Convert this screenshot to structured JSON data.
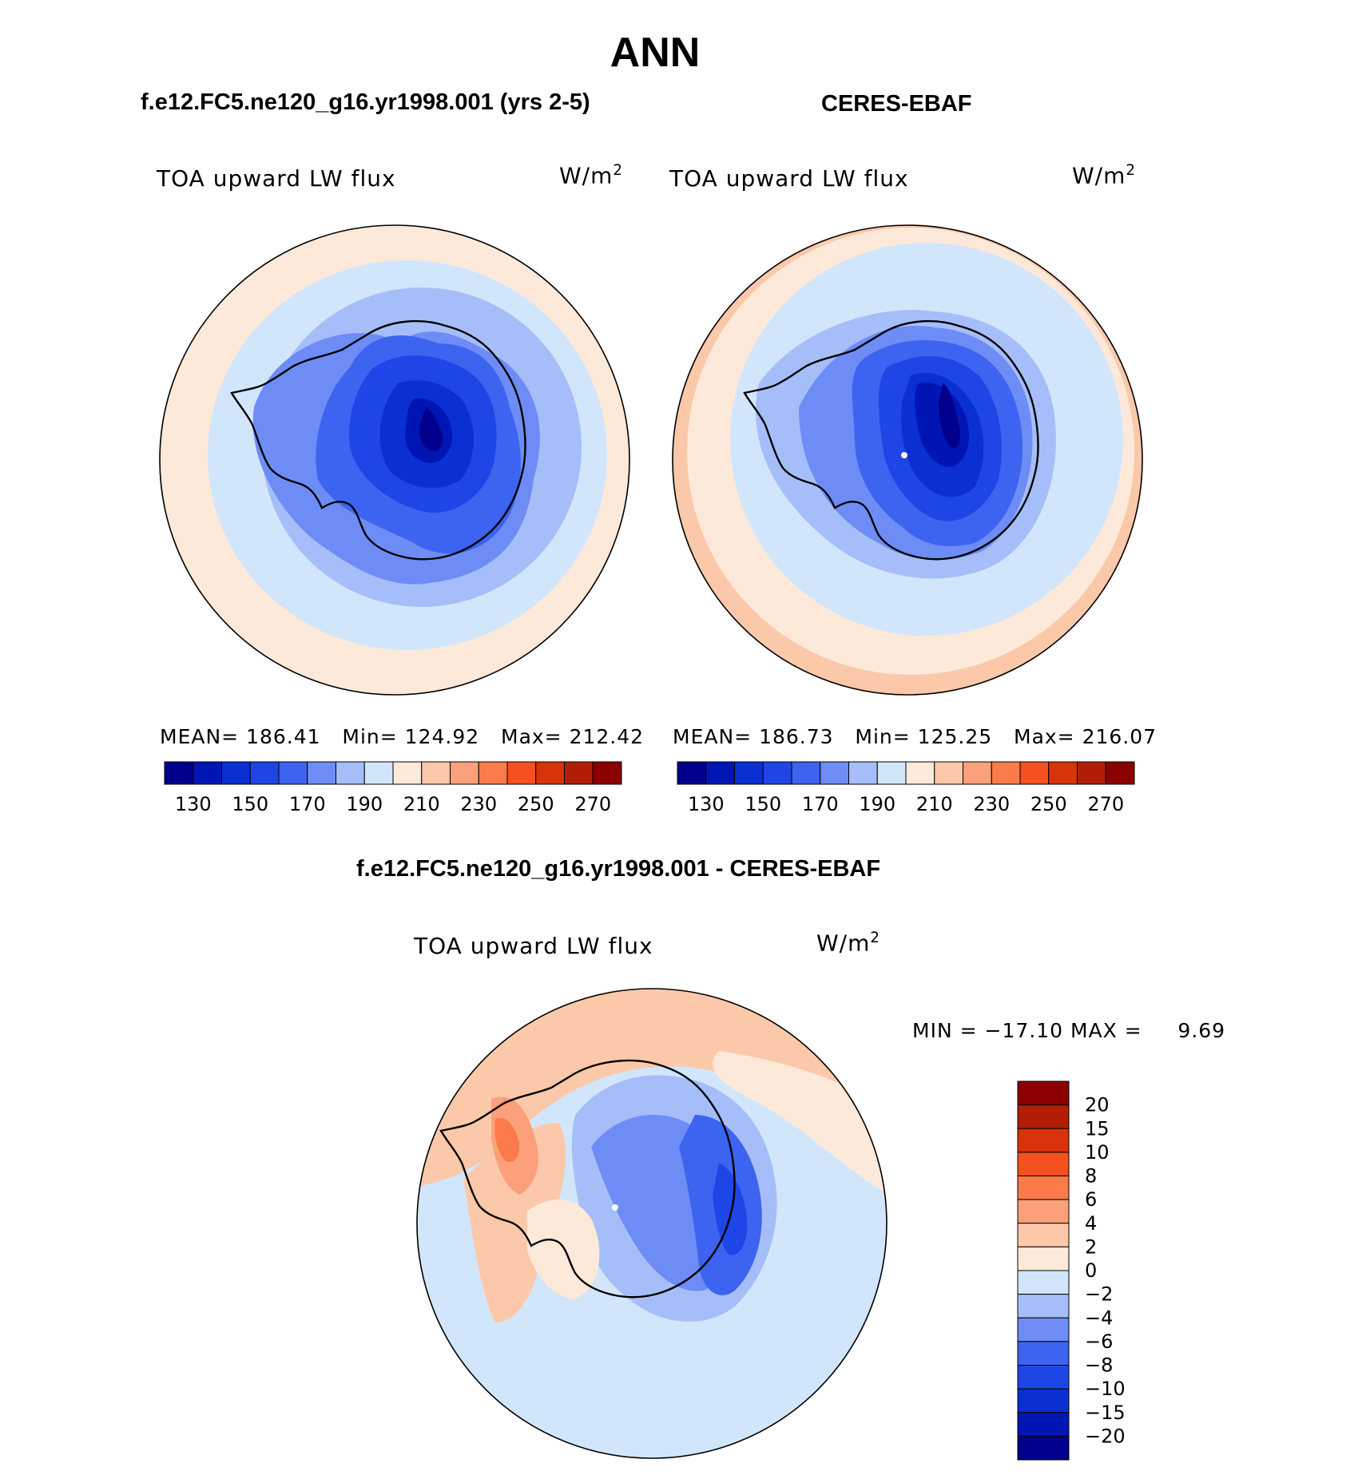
{
  "page": {
    "title": "ANN"
  },
  "panels": [
    {
      "heading": "f.e12.FC5.ne120_g16.yr1998.001 (yrs 2-5)",
      "variable": "TOA upward LW flux",
      "units_base": "W/m",
      "units_exp": "2",
      "stats": {
        "mean_label": "MEAN=",
        "mean": "186.41",
        "min_label": "Min=",
        "min": "124.92",
        "max_label": "Max=",
        "max": "212.42"
      }
    },
    {
      "heading": "CERES-EBAF",
      "variable": "TOA upward LW flux",
      "units_base": "W/m",
      "units_exp": "2",
      "stats": {
        "mean_label": "MEAN=",
        "mean": "186.73",
        "min_label": "Min=",
        "min": "125.25",
        "max_label": "Max=",
        "max": "216.07"
      }
    },
    {
      "heading": "f.e12.FC5.ne120_g16.yr1998.001 - CERES-EBAF",
      "variable": "TOA upward LW flux",
      "units_base": "W/m",
      "units_exp": "2",
      "stats": {
        "min_label": "MIN = ",
        "min": "−17.10",
        "max_label": "MAX = ",
        "max": "9.69"
      }
    }
  ],
  "chart_data": [
    {
      "type": "heatmap",
      "projection": "south-polar-stereographic",
      "title": "f.e12.FC5.ne120_g16.yr1998.001 (yrs 2-5)",
      "variable": "TOA upward LW flux",
      "units": "W/m2",
      "mean": 186.41,
      "min": 124.92,
      "max": 212.42,
      "colorbar": {
        "orientation": "horizontal",
        "levels": [
          130,
          140,
          150,
          160,
          170,
          180,
          190,
          200,
          210,
          220,
          230,
          240,
          250,
          260,
          270
        ],
        "tick_labels": [
          "130",
          "150",
          "170",
          "190",
          "210",
          "230",
          "250",
          "270"
        ],
        "colors": [
          "#00008c",
          "#0016b4",
          "#0a2fd2",
          "#1e46e6",
          "#3c64f0",
          "#6e8cf5",
          "#a5bef9",
          "#d2e6fb",
          "#fde9d9",
          "#fcc8aa",
          "#fba07a",
          "#fa7a4b",
          "#f5501e",
          "#d8330a",
          "#b11e05",
          "#8b0000"
        ]
      }
    },
    {
      "type": "heatmap",
      "projection": "south-polar-stereographic",
      "title": "CERES-EBAF",
      "variable": "TOA upward LW flux",
      "units": "W/m2",
      "mean": 186.73,
      "min": 125.25,
      "max": 216.07,
      "colorbar": {
        "orientation": "horizontal",
        "levels": [
          130,
          140,
          150,
          160,
          170,
          180,
          190,
          200,
          210,
          220,
          230,
          240,
          250,
          260,
          270
        ],
        "tick_labels": [
          "130",
          "150",
          "170",
          "190",
          "210",
          "230",
          "250",
          "270"
        ],
        "colors": [
          "#00008c",
          "#0016b4",
          "#0a2fd2",
          "#1e46e6",
          "#3c64f0",
          "#6e8cf5",
          "#a5bef9",
          "#d2e6fb",
          "#fde9d9",
          "#fcc8aa",
          "#fba07a",
          "#fa7a4b",
          "#f5501e",
          "#d8330a",
          "#b11e05",
          "#8b0000"
        ]
      }
    },
    {
      "type": "heatmap",
      "projection": "south-polar-stereographic",
      "title": "f.e12.FC5.ne120_g16.yr1998.001 - CERES-EBAF",
      "variable": "TOA upward LW flux",
      "units": "W/m2",
      "min": -17.1,
      "max": 9.69,
      "colorbar": {
        "orientation": "vertical",
        "levels": [
          20,
          15,
          10,
          8,
          6,
          4,
          2,
          0,
          -2,
          -4,
          -6,
          -8,
          -10,
          -15,
          -20
        ],
        "tick_labels": [
          "20",
          "15",
          "10",
          "8",
          "6",
          "4",
          "2",
          "0",
          "−2",
          "−4",
          "−6",
          "−8",
          "−10",
          "−15",
          "−20"
        ],
        "colors": [
          "#8b0000",
          "#b11e05",
          "#d8330a",
          "#f5501e",
          "#fa7a4b",
          "#fba07a",
          "#fcc8aa",
          "#fde9d9",
          "#d2e6fb",
          "#a5bef9",
          "#6e8cf5",
          "#3c64f0",
          "#1e46e6",
          "#0a2fd2",
          "#0016b4",
          "#00008c"
        ]
      }
    }
  ]
}
